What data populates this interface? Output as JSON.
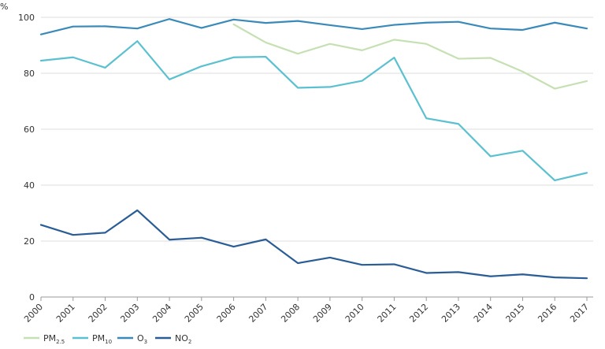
{
  "chart_data": {
    "type": "line",
    "ylabel": "%",
    "ylim": [
      0,
      100
    ],
    "yticks": [
      0,
      20,
      40,
      60,
      80,
      100
    ],
    "x": [
      "2000",
      "2001",
      "2002",
      "2003",
      "2004",
      "2005",
      "2006",
      "2007",
      "2008",
      "2009",
      "2010",
      "2011",
      "2012",
      "2013",
      "2014",
      "2015",
      "2016",
      "2017"
    ],
    "grid": true,
    "legend_placement": "bottom-left",
    "series": [
      {
        "key": "pm25",
        "name": "PM",
        "name_sub": "2.5",
        "color": "#c6e0b4",
        "values": [
          null,
          null,
          null,
          null,
          null,
          null,
          97.5,
          91,
          87,
          90.5,
          88.2,
          92,
          90.5,
          85.2,
          85.5,
          80.6,
          74.5,
          77.2
        ]
      },
      {
        "key": "pm10",
        "name": "PM",
        "name_sub": "10",
        "color": "#5bc0cf",
        "values": [
          84.5,
          85.7,
          82,
          91.5,
          77.8,
          82.5,
          85.7,
          85.9,
          74.8,
          75.1,
          77.3,
          85.6,
          63.9,
          61.9,
          50.3,
          52.3,
          41.7,
          44.4
        ]
      },
      {
        "key": "o3",
        "name": "O",
        "name_sub": "3",
        "color": "#3a8ab9",
        "values": [
          93.9,
          96.7,
          96.8,
          96,
          99.4,
          96.2,
          99.2,
          98,
          98.7,
          97.2,
          95.8,
          97.3,
          98.1,
          98.4,
          96,
          95.5,
          98.1,
          96
        ]
      },
      {
        "key": "no2",
        "name": "NO",
        "name_sub": "2",
        "color": "#2a5d95",
        "values": [
          25.8,
          22.2,
          23,
          31,
          20.5,
          21.2,
          18,
          20.6,
          12.1,
          14.1,
          11.5,
          11.7,
          8.6,
          8.9,
          7.4,
          8.1,
          7,
          6.7
        ]
      }
    ]
  }
}
